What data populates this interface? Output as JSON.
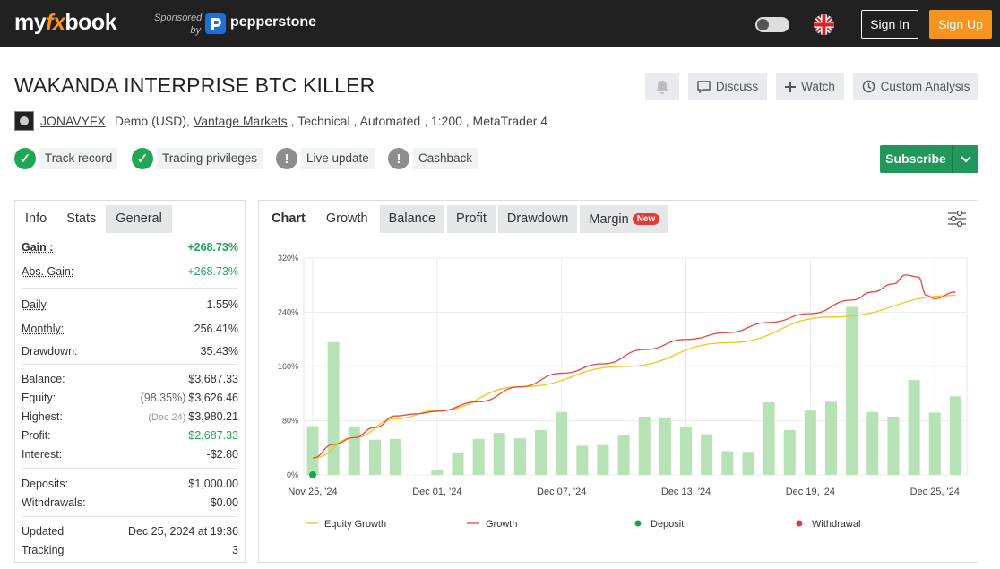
{
  "nav": {
    "logo_my": "my",
    "logo_fx": "fx",
    "logo_book": "book",
    "sponsored_line1": "Sponsored",
    "sponsored_line2": "by",
    "sponsor_name": "pepperstone",
    "sign_in": "Sign In",
    "sign_up": "Sign Up",
    "accent": "#f7941d"
  },
  "header": {
    "title": "WAKANDA INTERPRISE BTC KILLER",
    "actions": {
      "discuss": "Discuss",
      "watch": "Watch",
      "custom": "Custom Analysis"
    },
    "user": "JONAVYFX",
    "meta_demo": "Demo (USD),",
    "broker": "Vantage Markets",
    "meta_rest": ", Technical , Automated , 1:200 , MetaTrader 4",
    "badges": {
      "track": "Track record",
      "privileges": "Trading privileges",
      "live": "Live update",
      "cashback": "Cashback"
    },
    "subscribe": "Subscribe",
    "subscribe_color": "#21985a"
  },
  "left": {
    "tabs": {
      "info": "Info",
      "stats": "Stats",
      "general": "General"
    },
    "rows": {
      "gain_k": "Gain :",
      "gain_v": "+268.73%",
      "absgain_k": "Abs. Gain:",
      "absgain_v": "+268.73%",
      "daily_k": "Daily",
      "daily_v": "1.55%",
      "monthly_k": "Monthly:",
      "monthly_v": "256.41%",
      "drawdown_k": "Drawdown:",
      "drawdown_v": "35.43%",
      "balance_k": "Balance:",
      "balance_v": "$3,687.33",
      "equity_k": "Equity:",
      "equity_pre": "(98.35%)",
      "equity_v": "$3,626.46",
      "highest_k": "Highest:",
      "highest_pre": "(Dec 24)",
      "highest_v": "$3,980.21",
      "profit_k": "Profit:",
      "profit_v": "$2,687.33",
      "interest_k": "Interest:",
      "interest_v": "-$2.80",
      "deposits_k": "Deposits:",
      "deposits_v": "$1,000.00",
      "withdrawals_k": "Withdrawals:",
      "withdrawals_v": "$0.00",
      "updated_k": "Updated",
      "updated_v": "Dec 25, 2024 at 19:36",
      "tracking_k": "Tracking",
      "tracking_v": "3"
    }
  },
  "chart_tabs": {
    "chart": "Chart",
    "growth": "Growth",
    "balance": "Balance",
    "profit": "Profit",
    "drawdown": "Drawdown",
    "margin": "Margin",
    "new_badge": "New"
  },
  "chart_data": {
    "type": "line",
    "x_ticks": [
      "Nov 25, '24",
      "Dec 01, '24",
      "Dec 07, '24",
      "Dec 13, '24",
      "Dec 19, '24",
      "Dec 25, '24"
    ],
    "y_ticks": [
      "0%",
      "80%",
      "160%",
      "240%",
      "320%"
    ],
    "ylim": [
      0,
      320
    ],
    "x_range_days": [
      0,
      30
    ],
    "grid": true,
    "legend_position": "bottom",
    "legend": [
      "Equity Growth",
      "Growth",
      "Deposit",
      "Withdrawal"
    ],
    "colors": {
      "equity": "#f5c518",
      "growth": "#e8473b",
      "deposit": "#1aa64a",
      "withdrawal": "#e53935",
      "bars": "#b7e2b5"
    },
    "bars": [
      {
        "day": 0,
        "value": 72
      },
      {
        "day": 1,
        "value": 196
      },
      {
        "day": 2,
        "value": 70
      },
      {
        "day": 3,
        "value": 52
      },
      {
        "day": 4,
        "value": 53
      },
      {
        "day": 5,
        "value": 0
      },
      {
        "day": 6,
        "value": 7
      },
      {
        "day": 7,
        "value": 33
      },
      {
        "day": 8,
        "value": 53
      },
      {
        "day": 9,
        "value": 62
      },
      {
        "day": 10,
        "value": 54
      },
      {
        "day": 11,
        "value": 66
      },
      {
        "day": 12,
        "value": 93
      },
      {
        "day": 13,
        "value": 43
      },
      {
        "day": 14,
        "value": 44
      },
      {
        "day": 15,
        "value": 58
      },
      {
        "day": 16,
        "value": 86
      },
      {
        "day": 17,
        "value": 85
      },
      {
        "day": 18,
        "value": 70
      },
      {
        "day": 19,
        "value": 60
      },
      {
        "day": 20,
        "value": 35
      },
      {
        "day": 21,
        "value": 34
      },
      {
        "day": 22,
        "value": 107
      },
      {
        "day": 23,
        "value": 66
      },
      {
        "day": 24,
        "value": 95
      },
      {
        "day": 25,
        "value": 108
      },
      {
        "day": 26,
        "value": 248
      },
      {
        "day": 27,
        "value": 93
      },
      {
        "day": 28,
        "value": 86
      },
      {
        "day": 29,
        "value": 140
      },
      {
        "day": 30,
        "value": 92
      },
      {
        "day": 31,
        "value": 116
      }
    ],
    "series": [
      {
        "name": "Equity Growth",
        "points": [
          [
            0,
            25
          ],
          [
            2,
            55
          ],
          [
            4,
            83
          ],
          [
            6,
            95
          ],
          [
            10,
            130
          ],
          [
            15,
            160
          ],
          [
            20,
            195
          ],
          [
            25,
            233
          ],
          [
            31,
            265
          ]
        ]
      },
      {
        "name": "Growth",
        "points": [
          [
            0,
            25
          ],
          [
            1,
            45
          ],
          [
            2,
            55
          ],
          [
            3,
            70
          ],
          [
            4,
            87
          ],
          [
            5,
            90
          ],
          [
            6,
            94
          ],
          [
            8,
            108
          ],
          [
            10,
            130
          ],
          [
            12,
            150
          ],
          [
            14,
            164
          ],
          [
            16,
            185
          ],
          [
            18,
            200
          ],
          [
            20,
            210
          ],
          [
            22,
            225
          ],
          [
            24,
            238
          ],
          [
            26,
            258
          ],
          [
            27,
            270
          ],
          [
            28,
            282
          ],
          [
            28.6,
            295
          ],
          [
            29.2,
            292
          ],
          [
            29.6,
            265
          ],
          [
            30,
            260
          ],
          [
            31,
            270
          ]
        ]
      }
    ],
    "deposits": [
      {
        "day": 0,
        "value": 0
      }
    ]
  }
}
